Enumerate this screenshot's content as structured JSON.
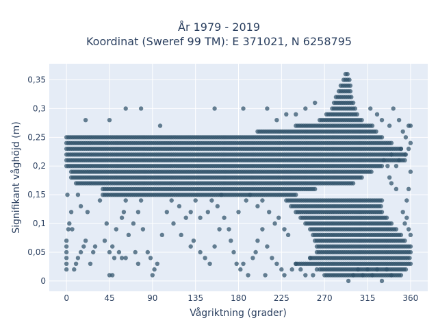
{
  "chart_data": {
    "type": "scatter",
    "title_line1": "År 1979 - 2019",
    "title_line2": "Koordinat (Sweref 99 TM): E 371021, N 6258795",
    "xlabel": "Vågriktning (grader)",
    "ylabel": "Signifikant våghöjd (m)",
    "xlim": [
      -18,
      378
    ],
    "ylim": [
      -0.018,
      0.378
    ],
    "xticks": [
      0,
      45,
      90,
      135,
      180,
      225,
      270,
      315,
      360
    ],
    "xtick_labels": [
      "0",
      "45",
      "90",
      "135",
      "180",
      "225",
      "270",
      "315",
      "360"
    ],
    "yticks": [
      0,
      0.05,
      0.1,
      0.15,
      0.2,
      0.25,
      0.3,
      0.35
    ],
    "ytick_labels": [
      "0",
      "0,05",
      "0,1",
      "0,15",
      "0,2",
      "0,25",
      "0,3",
      "0,35"
    ],
    "grid": true,
    "marker_color": "#2e5068",
    "plot_background": "#e5ecf6",
    "dense_bands": [
      {
        "y": 0.15,
        "x": [
          40,
          240
        ]
      },
      {
        "y": 0.16,
        "x": [
          38,
          260
        ]
      },
      {
        "y": 0.17,
        "x": [
          10,
          300
        ]
      },
      {
        "y": 0.18,
        "x": [
          5,
          310
        ]
      },
      {
        "y": 0.19,
        "x": [
          5,
          320
        ]
      },
      {
        "y": 0.2,
        "x": [
          0,
          330
        ]
      },
      {
        "y": 0.21,
        "x": [
          0,
          355
        ]
      },
      {
        "y": 0.22,
        "x": [
          0,
          355
        ]
      },
      {
        "y": 0.23,
        "x": [
          0,
          350
        ]
      },
      {
        "y": 0.24,
        "x": [
          0,
          340
        ]
      },
      {
        "y": 0.25,
        "x": [
          0,
          330
        ]
      },
      {
        "y": 0.26,
        "x": [
          200,
          325
        ]
      },
      {
        "y": 0.27,
        "x": [
          240,
          320
        ]
      },
      {
        "y": 0.28,
        "x": [
          265,
          310
        ]
      },
      {
        "y": 0.29,
        "x": [
          272,
          305
        ]
      },
      {
        "y": 0.3,
        "x": [
          278,
          302
        ]
      },
      {
        "y": 0.31,
        "x": [
          280,
          300
        ]
      },
      {
        "y": 0.32,
        "x": [
          282,
          299
        ]
      },
      {
        "y": 0.33,
        "x": [
          285,
          298
        ]
      },
      {
        "y": 0.34,
        "x": [
          287,
          297
        ]
      },
      {
        "y": 0.35,
        "x": [
          290,
          296
        ]
      },
      {
        "y": 0.36,
        "x": [
          292,
          295
        ]
      },
      {
        "y": 0.14,
        "x": [
          230,
          330
        ]
      },
      {
        "y": 0.13,
        "x": [
          235,
          330
        ]
      },
      {
        "y": 0.12,
        "x": [
          240,
          330
        ]
      },
      {
        "y": 0.11,
        "x": [
          245,
          335
        ]
      },
      {
        "y": 0.1,
        "x": [
          250,
          340
        ]
      },
      {
        "y": 0.09,
        "x": [
          255,
          345
        ]
      },
      {
        "y": 0.08,
        "x": [
          258,
          350
        ]
      },
      {
        "y": 0.07,
        "x": [
          260,
          355
        ]
      },
      {
        "y": 0.06,
        "x": [
          262,
          360
        ]
      },
      {
        "y": 0.05,
        "x": [
          262,
          360
        ]
      },
      {
        "y": 0.04,
        "x": [
          255,
          360
        ]
      },
      {
        "y": 0.03,
        "x": [
          240,
          360
        ]
      },
      {
        "y": 0.02,
        "x": [
          265,
          355
        ]
      },
      {
        "y": 0.01,
        "x": [
          270,
          350
        ]
      }
    ],
    "scattered_points": [
      [
        0,
        0.02
      ],
      [
        0,
        0.03
      ],
      [
        0,
        0.04
      ],
      [
        0,
        0.05
      ],
      [
        0,
        0.06
      ],
      [
        0,
        0.07
      ],
      [
        2,
        0.09
      ],
      [
        3,
        0.1
      ],
      [
        5,
        0.12
      ],
      [
        1,
        0.15
      ],
      [
        8,
        0.02
      ],
      [
        10,
        0.03
      ],
      [
        12,
        0.04
      ],
      [
        15,
        0.05
      ],
      [
        18,
        0.06
      ],
      [
        20,
        0.07
      ],
      [
        6,
        0.09
      ],
      [
        25,
        0.03
      ],
      [
        28,
        0.05
      ],
      [
        30,
        0.06
      ],
      [
        22,
        0.12
      ],
      [
        35,
        0.14
      ],
      [
        38,
        0.15
      ],
      [
        15,
        0.13
      ],
      [
        12,
        0.15
      ],
      [
        40,
        0.07
      ],
      [
        45,
        0.05
      ],
      [
        48,
        0.06
      ],
      [
        50,
        0.04
      ],
      [
        55,
        0.05
      ],
      [
        42,
        0.1
      ],
      [
        52,
        0.09
      ],
      [
        58,
        0.11
      ],
      [
        60,
        0.12
      ],
      [
        62,
        0.14
      ],
      [
        65,
        0.08
      ],
      [
        70,
        0.1
      ],
      [
        75,
        0.12
      ],
      [
        78,
        0.14
      ],
      [
        80,
        0.09
      ],
      [
        45,
        0.01
      ],
      [
        48,
        0.01
      ],
      [
        58,
        0.04
      ],
      [
        62,
        0.04
      ],
      [
        72,
        0.05
      ],
      [
        75,
        0.03
      ],
      [
        85,
        0.05
      ],
      [
        88,
        0.04
      ],
      [
        92,
        0.02
      ],
      [
        95,
        0.03
      ],
      [
        90,
        0.01
      ],
      [
        100,
        0.08
      ],
      [
        105,
        0.12
      ],
      [
        110,
        0.14
      ],
      [
        112,
        0.1
      ],
      [
        118,
        0.13
      ],
      [
        120,
        0.08
      ],
      [
        125,
        0.11
      ],
      [
        130,
        0.12
      ],
      [
        135,
        0.14
      ],
      [
        78,
        0.3
      ],
      [
        45,
        0.28
      ],
      [
        62,
        0.3
      ],
      [
        130,
        0.06
      ],
      [
        133,
        0.07
      ],
      [
        140,
        0.05
      ],
      [
        145,
        0.04
      ],
      [
        150,
        0.03
      ],
      [
        155,
        0.06
      ],
      [
        160,
        0.09
      ],
      [
        140,
        0.11
      ],
      [
        148,
        0.12
      ],
      [
        152,
        0.14
      ],
      [
        158,
        0.13
      ],
      [
        162,
        0.15
      ],
      [
        165,
        0.11
      ],
      [
        170,
        0.09
      ],
      [
        172,
        0.07
      ],
      [
        175,
        0.05
      ],
      [
        178,
        0.03
      ],
      [
        182,
        0.02
      ],
      [
        185,
        0.03
      ],
      [
        190,
        0.01
      ],
      [
        195,
        0.04
      ],
      [
        198,
        0.05
      ],
      [
        200,
        0.07
      ],
      [
        205,
        0.09
      ],
      [
        210,
        0.06
      ],
      [
        215,
        0.04
      ],
      [
        220,
        0.03
      ],
      [
        180,
        0.12
      ],
      [
        188,
        0.14
      ],
      [
        192,
        0.15
      ],
      [
        200,
        0.13
      ],
      [
        205,
        0.14
      ],
      [
        212,
        0.12
      ],
      [
        218,
        0.1
      ],
      [
        222,
        0.11
      ],
      [
        228,
        0.09
      ],
      [
        232,
        0.08
      ],
      [
        208,
        0.01
      ],
      [
        225,
        0.02
      ],
      [
        228,
        0.01
      ],
      [
        236,
        0.02
      ],
      [
        240,
        0.03
      ],
      [
        245,
        0.02
      ],
      [
        250,
        0.01
      ],
      [
        255,
        0.04
      ],
      [
        258,
        0.01
      ],
      [
        262,
        0.02
      ],
      [
        155,
        0.3
      ],
      [
        185,
        0.3
      ],
      [
        210,
        0.3
      ],
      [
        220,
        0.28
      ],
      [
        230,
        0.29
      ],
      [
        240,
        0.29
      ],
      [
        250,
        0.3
      ],
      [
        260,
        0.31
      ],
      [
        20,
        0.28
      ],
      [
        98,
        0.27
      ],
      [
        295,
        0.0
      ],
      [
        300,
        0.01
      ],
      [
        305,
        0.02
      ],
      [
        310,
        0.01
      ],
      [
        315,
        0.02
      ],
      [
        320,
        0.01
      ],
      [
        325,
        0.02
      ],
      [
        330,
        0.0
      ],
      [
        335,
        0.02
      ],
      [
        340,
        0.01
      ],
      [
        318,
        0.3
      ],
      [
        325,
        0.29
      ],
      [
        330,
        0.28
      ],
      [
        338,
        0.27
      ],
      [
        342,
        0.3
      ],
      [
        348,
        0.28
      ],
      [
        352,
        0.26
      ],
      [
        355,
        0.25
      ],
      [
        358,
        0.27
      ],
      [
        360,
        0.27
      ],
      [
        340,
        0.22
      ],
      [
        345,
        0.2
      ],
      [
        348,
        0.21
      ],
      [
        350,
        0.23
      ],
      [
        355,
        0.22
      ],
      [
        358,
        0.23
      ],
      [
        360,
        0.24
      ],
      [
        360,
        0.19
      ],
      [
        358,
        0.16
      ],
      [
        356,
        0.14
      ],
      [
        352,
        0.12
      ],
      [
        354,
        0.1
      ],
      [
        356,
        0.11
      ],
      [
        358,
        0.09
      ],
      [
        360,
        0.08
      ],
      [
        345,
        0.16
      ],
      [
        340,
        0.17
      ],
      [
        338,
        0.18
      ],
      [
        336,
        0.2
      ],
      [
        332,
        0.21
      ]
    ]
  }
}
